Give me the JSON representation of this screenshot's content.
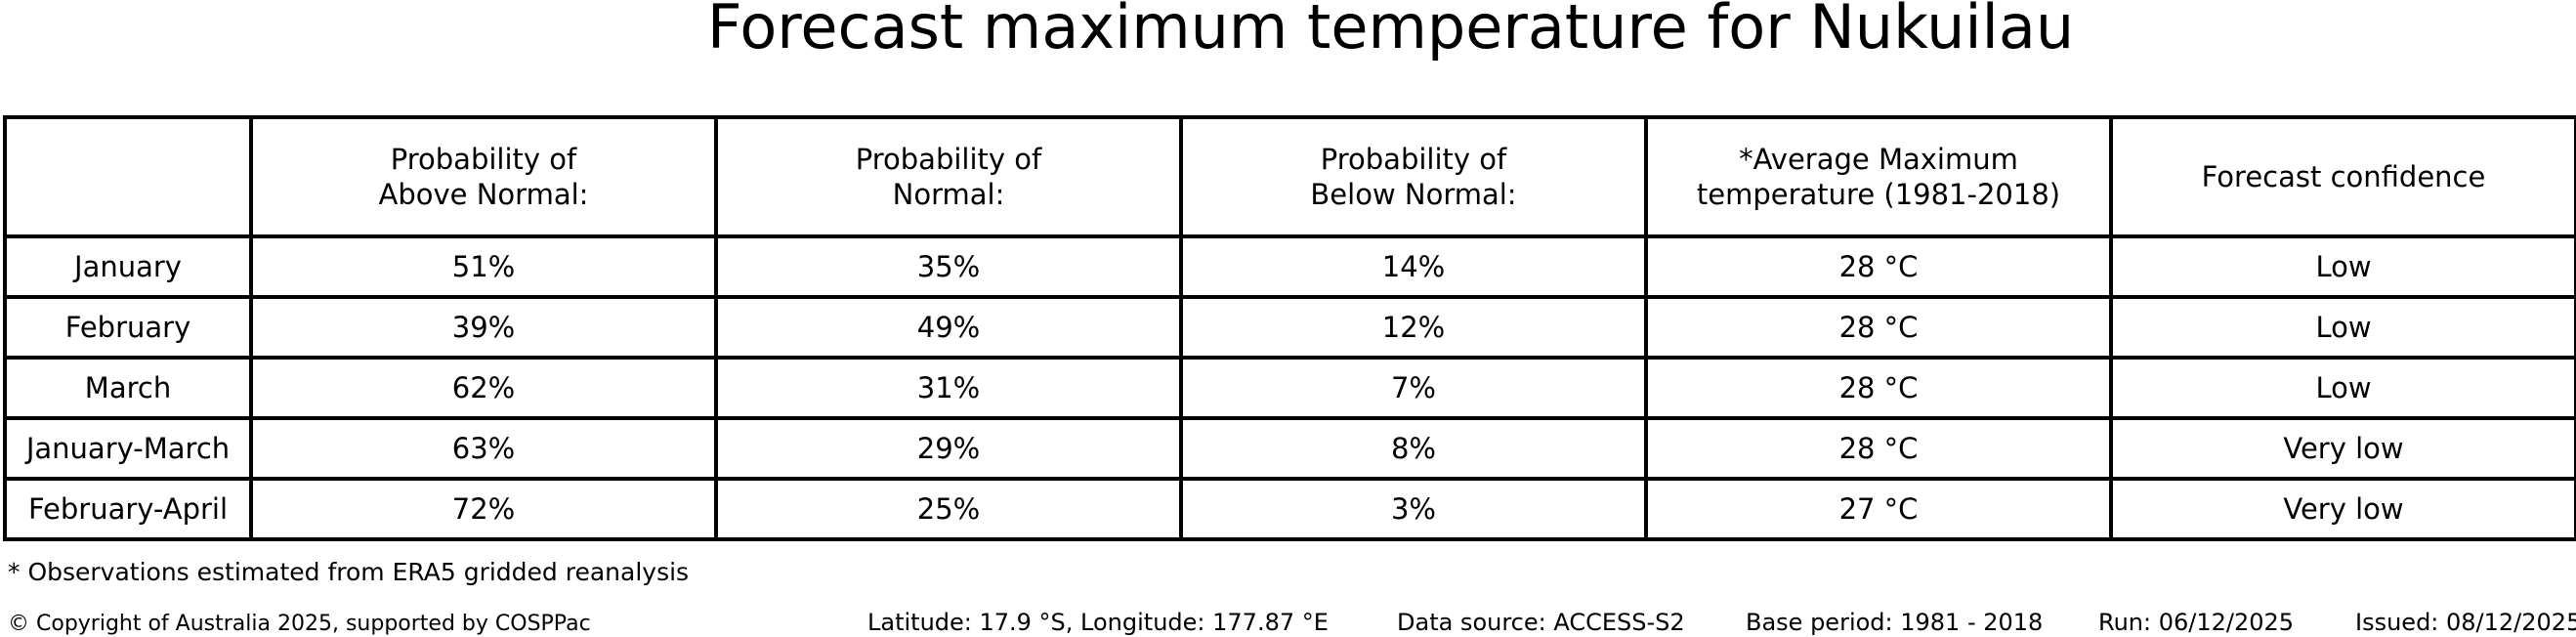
{
  "title": "Forecast maximum temperature for Nukuilau",
  "table": {
    "headers": [
      "Probability of\nAbove Normal:",
      "Probability of\nNormal:",
      "Probability of\nBelow Normal:",
      "*Average Maximum\ntemperature (1981-2018)",
      "Forecast confidence"
    ],
    "rows": [
      {
        "label": "January",
        "above": "51%",
        "normal": "35%",
        "below": "14%",
        "avg_temp": "28 °C",
        "confidence": "Low"
      },
      {
        "label": "February",
        "above": "39%",
        "normal": "49%",
        "below": "12%",
        "avg_temp": "28 °C",
        "confidence": "Low"
      },
      {
        "label": "March",
        "above": "62%",
        "normal": "31%",
        "below": "7%",
        "avg_temp": "28 °C",
        "confidence": "Low"
      },
      {
        "label": "January-March",
        "above": "63%",
        "normal": "29%",
        "below": "8%",
        "avg_temp": "28 °C",
        "confidence": "Very low"
      },
      {
        "label": "February-April",
        "above": "72%",
        "normal": "25%",
        "below": "3%",
        "avg_temp": "27 °C",
        "confidence": "Very low"
      }
    ]
  },
  "footnote": "* Observations estimated from ERA5 gridded reanalysis",
  "footer": {
    "copyright": "© Copyright of Australia 2025, supported by COSPPac",
    "location": "Latitude: 17.9 °S, Longitude: 177.87 °E",
    "data_source": "Data source: ACCESS-S2",
    "base_period": "Base period: 1981 - 2018",
    "run": "Run: 06/12/2025",
    "issued": "Issued: 08/12/2025"
  },
  "colors": {
    "background": "#ffffff",
    "text": "#000000",
    "border": "#000000"
  },
  "chart_data": {
    "type": "table",
    "title": "Forecast maximum temperature for Nukuilau",
    "columns": [
      "",
      "Probability of Above Normal:",
      "Probability of Normal:",
      "Probability of Below Normal:",
      "*Average Maximum temperature (1981-2018)",
      "Forecast confidence"
    ],
    "rows": [
      [
        "January",
        "51%",
        "35%",
        "14%",
        "28 °C",
        "Low"
      ],
      [
        "February",
        "39%",
        "49%",
        "12%",
        "28 °C",
        "Low"
      ],
      [
        "March",
        "62%",
        "31%",
        "7%",
        "28 °C",
        "Low"
      ],
      [
        "January-March",
        "63%",
        "29%",
        "8%",
        "28 °C",
        "Very low"
      ],
      [
        "February-April",
        "72%",
        "25%",
        "3%",
        "27 °C",
        "Very low"
      ]
    ],
    "notes": [
      "* Observations estimated from ERA5 gridded reanalysis",
      "Latitude: 17.9 °S, Longitude: 177.87 °E",
      "Data source: ACCESS-S2",
      "Base period: 1981 - 2018",
      "Run: 06/12/2025",
      "Issued: 08/12/2025"
    ]
  }
}
